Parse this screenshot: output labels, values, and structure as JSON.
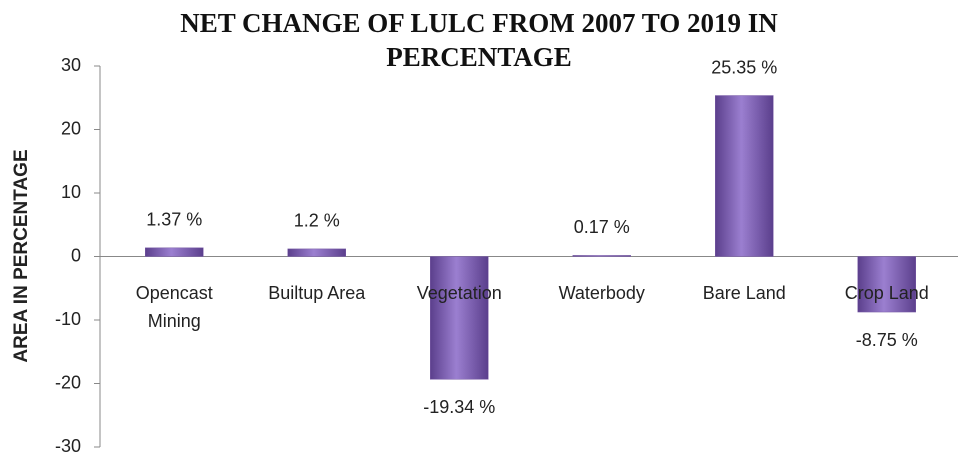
{
  "chart_data": {
    "type": "bar",
    "title": "NET CHANGE OF LULC FROM 2007 TO 2019 IN PERCENTAGE",
    "y_label": "AREA IN PERCENTAGE",
    "categories": [
      "Opencast Mining",
      "Builtup Area",
      "Vegetation",
      "Waterbody",
      "Bare Land",
      "Crop Land"
    ],
    "values": [
      1.37,
      1.2,
      -19.34,
      0.17,
      25.35,
      -8.75
    ],
    "value_labels": [
      "1.37 %",
      "1.2 %",
      "-19.34 %",
      "0.17 %",
      "25.35 %",
      "-8.75 %"
    ],
    "color": "#7b5ea7",
    "ylim": [
      -30,
      30
    ],
    "yticks": [
      -30,
      -20,
      -10,
      0,
      10,
      20,
      30
    ],
    "grid": false
  }
}
